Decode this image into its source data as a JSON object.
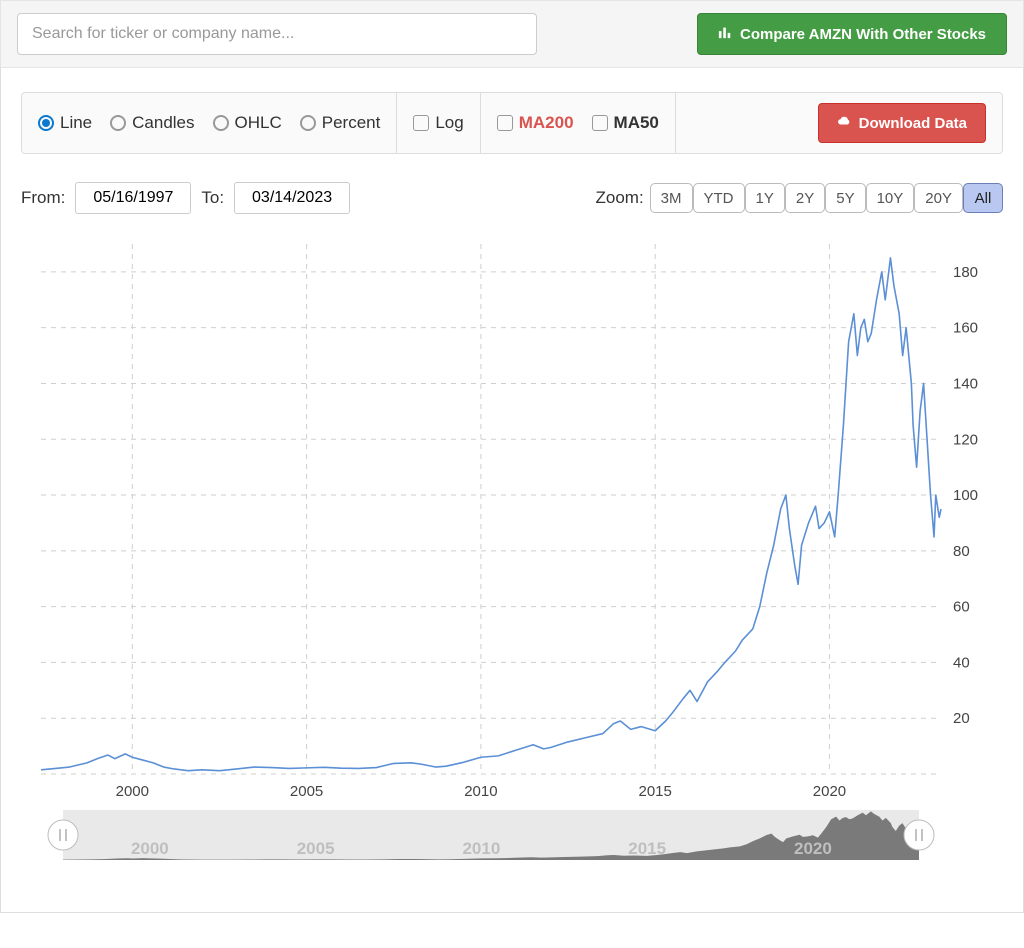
{
  "topbar": {
    "search_placeholder": "Search for ticker or company name...",
    "compare_label": "Compare AMZN With Other Stocks"
  },
  "toolbar": {
    "chart_types": [
      {
        "id": "line",
        "label": "Line",
        "selected": true
      },
      {
        "id": "candles",
        "label": "Candles",
        "selected": false
      },
      {
        "id": "ohlc",
        "label": "OHLC",
        "selected": false
      },
      {
        "id": "percent",
        "label": "Percent",
        "selected": false
      }
    ],
    "log_label": "Log",
    "ma200_label": "MA200",
    "ma50_label": "MA50",
    "download_label": "Download Data"
  },
  "date_range": {
    "from_label": "From:",
    "from_value": "05/16/1997",
    "to_label": "To:",
    "to_value": "03/14/2023"
  },
  "zoom": {
    "label": "Zoom:",
    "options": [
      "3M",
      "YTD",
      "1Y",
      "2Y",
      "5Y",
      "10Y",
      "20Y",
      "All"
    ],
    "active": "All"
  },
  "chart": {
    "type": "line",
    "line_color": "#5b8fd6",
    "grid_color": "#cfcfcf",
    "background_color": "#ffffff",
    "x_axis": {
      "min_year": 1997.38,
      "max_year": 2023.2,
      "tick_years": [
        2000,
        2005,
        2010,
        2015,
        2020
      ]
    },
    "y_axis": {
      "min": 0,
      "max": 190,
      "ticks": [
        20,
        40,
        60,
        80,
        100,
        120,
        140,
        160,
        180
      ]
    },
    "series": [
      [
        1997.38,
        1.5
      ],
      [
        1997.8,
        2
      ],
      [
        1998.2,
        2.5
      ],
      [
        1998.7,
        4
      ],
      [
        1999.0,
        5.5
      ],
      [
        1999.3,
        6.8
      ],
      [
        1999.5,
        5.5
      ],
      [
        1999.8,
        7.2
      ],
      [
        2000.0,
        6.0
      ],
      [
        2000.3,
        5.0
      ],
      [
        2000.6,
        4.0
      ],
      [
        2000.9,
        2.5
      ],
      [
        2001.2,
        1.8
      ],
      [
        2001.6,
        1.2
      ],
      [
        2002.0,
        1.5
      ],
      [
        2002.5,
        1.2
      ],
      [
        2003.0,
        1.8
      ],
      [
        2003.5,
        2.5
      ],
      [
        2004.0,
        2.3
      ],
      [
        2004.5,
        2.0
      ],
      [
        2005.0,
        2.2
      ],
      [
        2005.5,
        2.4
      ],
      [
        2006.0,
        2.1
      ],
      [
        2006.5,
        2.0
      ],
      [
        2007.0,
        2.3
      ],
      [
        2007.5,
        3.8
      ],
      [
        2008.0,
        4.0
      ],
      [
        2008.3,
        3.5
      ],
      [
        2008.7,
        2.5
      ],
      [
        2009.0,
        2.8
      ],
      [
        2009.5,
        4.2
      ],
      [
        2010.0,
        6.0
      ],
      [
        2010.5,
        6.5
      ],
      [
        2011.0,
        8.5
      ],
      [
        2011.5,
        10.5
      ],
      [
        2011.8,
        9.0
      ],
      [
        2012.0,
        9.5
      ],
      [
        2012.5,
        11.5
      ],
      [
        2013.0,
        13.0
      ],
      [
        2013.5,
        14.5
      ],
      [
        2013.8,
        18.0
      ],
      [
        2014.0,
        19.0
      ],
      [
        2014.3,
        16.0
      ],
      [
        2014.6,
        17.0
      ],
      [
        2015.0,
        15.5
      ],
      [
        2015.3,
        19.0
      ],
      [
        2015.5,
        22.0
      ],
      [
        2015.8,
        27.0
      ],
      [
        2016.0,
        30.0
      ],
      [
        2016.2,
        26.0
      ],
      [
        2016.5,
        33.0
      ],
      [
        2016.8,
        37.0
      ],
      [
        2017.0,
        40.0
      ],
      [
        2017.3,
        44.0
      ],
      [
        2017.5,
        48.0
      ],
      [
        2017.8,
        52.0
      ],
      [
        2018.0,
        60.0
      ],
      [
        2018.2,
        72.0
      ],
      [
        2018.4,
        82.0
      ],
      [
        2018.6,
        95.0
      ],
      [
        2018.75,
        100.0
      ],
      [
        2018.85,
        88.0
      ],
      [
        2019.0,
        75.0
      ],
      [
        2019.1,
        68.0
      ],
      [
        2019.2,
        82.0
      ],
      [
        2019.4,
        90.0
      ],
      [
        2019.6,
        96.0
      ],
      [
        2019.7,
        88.0
      ],
      [
        2019.85,
        90.0
      ],
      [
        2020.0,
        94.0
      ],
      [
        2020.15,
        85.0
      ],
      [
        2020.25,
        100.0
      ],
      [
        2020.4,
        125.0
      ],
      [
        2020.55,
        155.0
      ],
      [
        2020.7,
        165.0
      ],
      [
        2020.8,
        150.0
      ],
      [
        2020.9,
        160.0
      ],
      [
        2021.0,
        163.0
      ],
      [
        2021.1,
        155.0
      ],
      [
        2021.2,
        158.0
      ],
      [
        2021.35,
        170.0
      ],
      [
        2021.5,
        180.0
      ],
      [
        2021.6,
        170.0
      ],
      [
        2021.75,
        185.0
      ],
      [
        2021.85,
        175.0
      ],
      [
        2022.0,
        165.0
      ],
      [
        2022.1,
        150.0
      ],
      [
        2022.2,
        160.0
      ],
      [
        2022.35,
        140.0
      ],
      [
        2022.4,
        125.0
      ],
      [
        2022.5,
        110.0
      ],
      [
        2022.6,
        130.0
      ],
      [
        2022.7,
        140.0
      ],
      [
        2022.8,
        120.0
      ],
      [
        2022.9,
        100.0
      ],
      [
        2023.0,
        85.0
      ],
      [
        2023.05,
        100.0
      ],
      [
        2023.15,
        92.0
      ],
      [
        2023.2,
        95.0
      ]
    ]
  },
  "navigator": {
    "bg_color": "#e9e9e9",
    "area_color": "#7a7a7a",
    "tick_years": [
      2000,
      2005,
      2010,
      2015,
      2020
    ]
  }
}
